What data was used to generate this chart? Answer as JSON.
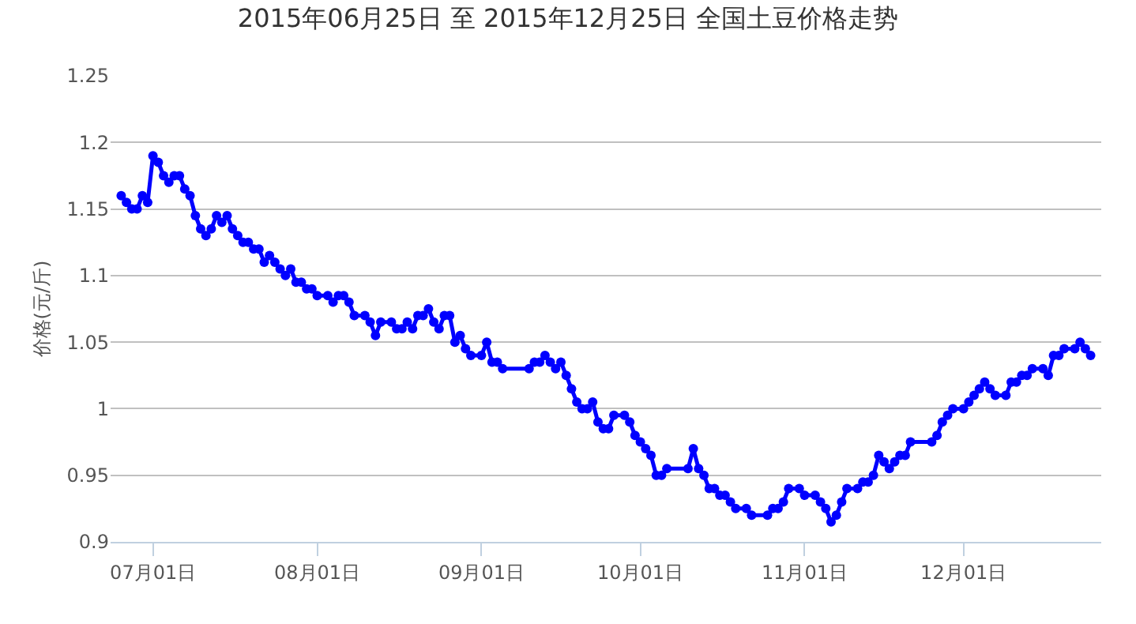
{
  "chart_data": {
    "type": "line",
    "title": "2015年06月25日 至 2015年12月25日 全国土豆价格走势",
    "ylabel": "价格(元/斤)",
    "x": [
      "2015-06-25",
      "2015-06-26",
      "2015-06-27",
      "2015-06-28",
      "2015-06-29",
      "2015-06-30",
      "2015-07-01",
      "2015-07-02",
      "2015-07-03",
      "2015-07-04",
      "2015-07-05",
      "2015-07-06",
      "2015-07-07",
      "2015-07-08",
      "2015-07-09",
      "2015-07-10",
      "2015-07-11",
      "2015-07-12",
      "2015-07-13",
      "2015-07-14",
      "2015-07-15",
      "2015-07-16",
      "2015-07-17",
      "2015-07-18",
      "2015-07-19",
      "2015-07-20",
      "2015-07-21",
      "2015-07-22",
      "2015-07-23",
      "2015-07-24",
      "2015-07-25",
      "2015-07-26",
      "2015-07-27",
      "2015-07-28",
      "2015-07-29",
      "2015-07-30",
      "2015-07-31",
      "2015-08-01",
      "2015-08-03",
      "2015-08-04",
      "2015-08-05",
      "2015-08-06",
      "2015-08-07",
      "2015-08-08",
      "2015-08-10",
      "2015-08-11",
      "2015-08-12",
      "2015-08-13",
      "2015-08-15",
      "2015-08-16",
      "2015-08-17",
      "2015-08-18",
      "2015-08-19",
      "2015-08-20",
      "2015-08-21",
      "2015-08-22",
      "2015-08-23",
      "2015-08-24",
      "2015-08-25",
      "2015-08-26",
      "2015-08-27",
      "2015-08-28",
      "2015-08-29",
      "2015-08-30",
      "2015-09-01",
      "2015-09-02",
      "2015-09-03",
      "2015-09-04",
      "2015-09-05",
      "2015-09-10",
      "2015-09-11",
      "2015-09-12",
      "2015-09-13",
      "2015-09-14",
      "2015-09-15",
      "2015-09-16",
      "2015-09-17",
      "2015-09-18",
      "2015-09-19",
      "2015-09-20",
      "2015-09-21",
      "2015-09-22",
      "2015-09-23",
      "2015-09-24",
      "2015-09-25",
      "2015-09-26",
      "2015-09-28",
      "2015-09-29",
      "2015-09-30",
      "2015-10-01",
      "2015-10-02",
      "2015-10-03",
      "2015-10-04",
      "2015-10-05",
      "2015-10-06",
      "2015-10-10",
      "2015-10-11",
      "2015-10-12",
      "2015-10-13",
      "2015-10-14",
      "2015-10-15",
      "2015-10-16",
      "2015-10-17",
      "2015-10-18",
      "2015-10-19",
      "2015-10-21",
      "2015-10-22",
      "2015-10-25",
      "2015-10-26",
      "2015-10-27",
      "2015-10-28",
      "2015-10-29",
      "2015-10-31",
      "2015-11-01",
      "2015-11-03",
      "2015-11-04",
      "2015-11-05",
      "2015-11-06",
      "2015-11-07",
      "2015-11-08",
      "2015-11-09",
      "2015-11-11",
      "2015-11-12",
      "2015-11-13",
      "2015-11-14",
      "2015-11-15",
      "2015-11-16",
      "2015-11-17",
      "2015-11-18",
      "2015-11-19",
      "2015-11-20",
      "2015-11-21",
      "2015-11-25",
      "2015-11-26",
      "2015-11-27",
      "2015-11-28",
      "2015-11-29",
      "2015-12-01",
      "2015-12-02",
      "2015-12-03",
      "2015-12-04",
      "2015-12-05",
      "2015-12-06",
      "2015-12-07",
      "2015-12-09",
      "2015-12-10",
      "2015-12-11",
      "2015-12-12",
      "2015-12-13",
      "2015-12-14",
      "2015-12-16",
      "2015-12-17",
      "2015-12-18",
      "2015-12-19",
      "2015-12-20",
      "2015-12-22",
      "2015-12-23",
      "2015-12-24",
      "2015-12-25"
    ],
    "series": [
      {
        "color": "#0000ff",
        "values": [
          1.16,
          1.155,
          1.15,
          1.15,
          1.16,
          1.155,
          1.19,
          1.185,
          1.175,
          1.17,
          1.175,
          1.175,
          1.165,
          1.16,
          1.145,
          1.135,
          1.13,
          1.135,
          1.145,
          1.14,
          1.145,
          1.135,
          1.13,
          1.125,
          1.125,
          1.12,
          1.12,
          1.11,
          1.115,
          1.11,
          1.105,
          1.1,
          1.105,
          1.095,
          1.095,
          1.09,
          1.09,
          1.085,
          1.085,
          1.08,
          1.085,
          1.085,
          1.08,
          1.07,
          1.07,
          1.065,
          1.055,
          1.065,
          1.065,
          1.06,
          1.06,
          1.065,
          1.06,
          1.07,
          1.07,
          1.075,
          1.065,
          1.06,
          1.07,
          1.07,
          1.05,
          1.055,
          1.045,
          1.04,
          1.04,
          1.05,
          1.035,
          1.035,
          1.03,
          1.03,
          1.035,
          1.035,
          1.04,
          1.035,
          1.03,
          1.035,
          1.025,
          1.015,
          1.005,
          1.0,
          1.0,
          1.005,
          0.99,
          0.985,
          0.985,
          0.995,
          0.995,
          0.99,
          0.98,
          0.975,
          0.97,
          0.965,
          0.95,
          0.95,
          0.955,
          0.955,
          0.97,
          0.955,
          0.95,
          0.94,
          0.94,
          0.935,
          0.935,
          0.93,
          0.925,
          0.925,
          0.92,
          0.92,
          0.925,
          0.925,
          0.93,
          0.94,
          0.94,
          0.935,
          0.935,
          0.93,
          0.925,
          0.915,
          0.92,
          0.93,
          0.94,
          0.94,
          0.945,
          0.945,
          0.95,
          0.965,
          0.96,
          0.955,
          0.96,
          0.965,
          0.965,
          0.975,
          0.975,
          0.98,
          0.99,
          0.995,
          1.0,
          1.0,
          1.005,
          1.01,
          1.015,
          1.02,
          1.015,
          1.01,
          1.01,
          1.02,
          1.02,
          1.025,
          1.025,
          1.03,
          1.03,
          1.025,
          1.04,
          1.04,
          1.045,
          1.045,
          1.05,
          1.045,
          1.04
        ]
      }
    ],
    "xlim": [
      "2015-06-23",
      "2015-12-27"
    ],
    "xticks": [
      {
        "value": "2015-07-01",
        "label": "07月01日"
      },
      {
        "value": "2015-08-01",
        "label": "08月01日"
      },
      {
        "value": "2015-09-01",
        "label": "09月01日"
      },
      {
        "value": "2015-10-01",
        "label": "10月01日"
      },
      {
        "value": "2015-11-01",
        "label": "11月01日"
      },
      {
        "value": "2015-12-01",
        "label": "12月01日"
      }
    ],
    "ylim": [
      0.9,
      1.25
    ],
    "yticks": [
      0.9,
      0.95,
      1,
      1.05,
      1.1,
      1.15,
      1.2,
      1.25
    ],
    "grid": "y",
    "marker": "circle",
    "line_style": "solid"
  }
}
